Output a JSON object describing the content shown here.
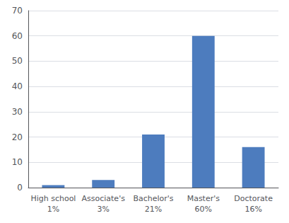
{
  "chart_data": {
    "type": "bar",
    "categories": [
      "High school\n1%",
      "Associate's\n3%",
      "Bachelor's\n21%",
      "Master's\n60%",
      "Doctorate\n16%"
    ],
    "values": [
      1,
      3,
      21,
      60,
      16
    ],
    "color": "#4d7cbe",
    "ylim": [
      0,
      70
    ],
    "yticks": [
      0,
      10,
      20,
      30,
      40,
      50,
      60,
      70
    ],
    "grid": true
  }
}
